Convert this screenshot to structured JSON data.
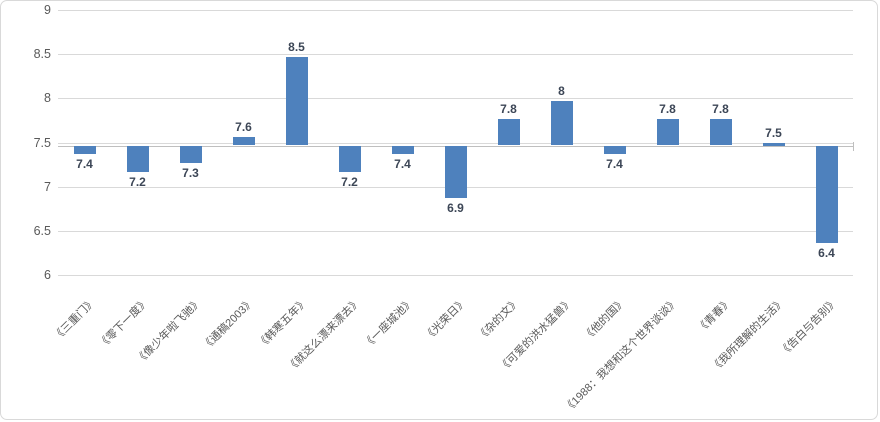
{
  "chart_data": {
    "type": "bar",
    "title": "",
    "categories": [
      "《三重门》",
      "《零下一度》",
      "《像少年啦飞驰》",
      "《通稿2003》",
      "《韩寒五年》",
      "《就这么漂来漂去》",
      "《一座城池》",
      "《光荣日》",
      "《杂的文》",
      "《可爱的洪水猛兽》",
      "《他的国》",
      "《1988：我想和这个世界谈谈》",
      "《青春》",
      "《我所理解的生活》",
      "《告白与告别》"
    ],
    "values": [
      7.4,
      7.2,
      7.3,
      7.6,
      8.5,
      7.2,
      7.4,
      6.9,
      7.8,
      8,
      7.4,
      7.8,
      7.8,
      7.5,
      6.4
    ],
    "value_labels": [
      "7.4",
      "7.2",
      "7.3",
      "7.6",
      "8.5",
      "7.2",
      "7.4",
      "6.9",
      "7.8",
      "8",
      "7.4",
      "7.8",
      "7.8",
      "7.5",
      "6.4"
    ],
    "baseline": 7.5,
    "ylim": [
      6,
      9
    ],
    "ytick_step": 0.5,
    "yticks": [
      "9",
      "8.5",
      "8",
      "7.5",
      "7",
      "6.5",
      "6"
    ],
    "grid": true,
    "legend_position": "none",
    "xlabel": "",
    "ylabel": "",
    "colors": {
      "bar": "#4E81BD",
      "gridline": "#D9D9D9",
      "axis_line": "#BFBFBF",
      "value_label": "#3C4656",
      "tick_label": "#595959",
      "category_label": "#595959",
      "frame_border": "#D9D9D9",
      "background": "#FFFFFF"
    }
  }
}
